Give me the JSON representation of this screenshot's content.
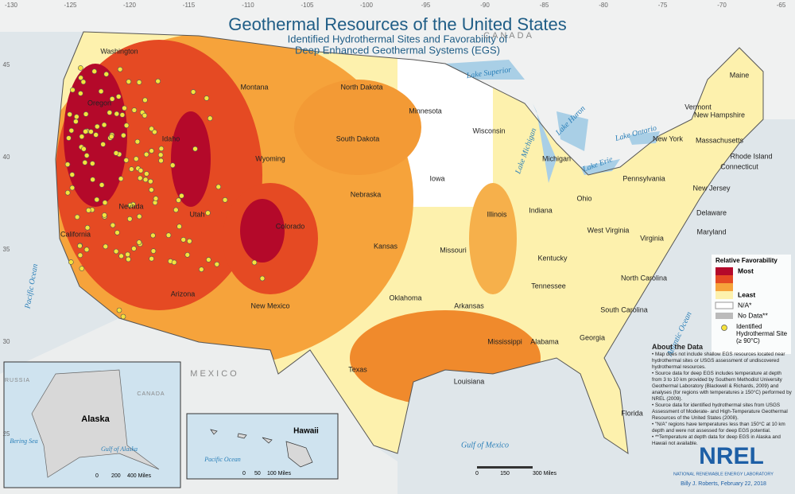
{
  "header": {
    "title": "Geothermal Resources of the United States",
    "subtitle": [
      "Identified Hydrothermal Sites and Favorability of",
      "Deep Enhanced Geothermal Systems (EGS)"
    ]
  },
  "map": {
    "states": [
      "Washington",
      "Oregon",
      "California",
      "Nevada",
      "Idaho",
      "Montana",
      "Wyoming",
      "Utah",
      "Arizona",
      "Colorado",
      "New Mexico",
      "North Dakota",
      "South Dakota",
      "Nebraska",
      "Kansas",
      "Oklahoma",
      "Texas",
      "Minnesota",
      "Iowa",
      "Missouri",
      "Arkansas",
      "Louisiana",
      "Wisconsin",
      "Illinois",
      "Michigan",
      "Indiana",
      "Ohio",
      "Kentucky",
      "Tennessee",
      "Mississippi",
      "Alabama",
      "Georgia",
      "Florida",
      "South Carolina",
      "North Carolina",
      "Virginia",
      "West Virginia",
      "Pennsylvania",
      "New York",
      "Maine",
      "Vermont",
      "New Hampshire",
      "Massachusetts",
      "Rhode Island",
      "Connecticut",
      "New Jersey",
      "Delaware",
      "Maryland"
    ],
    "water": [
      "Lake Superior",
      "Lake Michigan",
      "Lake Huron",
      "Lake Erie",
      "Lake Ontario",
      "Pacific Ocean",
      "Atlantic Ocean",
      "Gulf of Mexico"
    ],
    "countries": [
      "CANADA",
      "MEXICO"
    ],
    "longitudes": [
      -130,
      -125,
      -120,
      -115,
      -110,
      -105,
      -100,
      -95,
      -90,
      -85,
      -80,
      -75,
      -70,
      -65
    ],
    "latitudes": [
      45,
      40,
      35,
      30,
      25
    ]
  },
  "legend": {
    "title": "Relative Favorability",
    "most": "Most",
    "least": "Least",
    "na": "N/A*",
    "nodata": "No Data**",
    "site": "Identified Hydrothermal Site (≥ 90°C)"
  },
  "about": {
    "heading": "About the Data",
    "notes": [
      "• Map does not include shallow EGS resources located near hydrothermal sites or USGS assessment of undiscovered hydrothermal resources.",
      "• Source data for deep EGS includes temperature at depth from 3 to 10 km provided by Southern Methodist University Geothermal Laboratory (Blackwell & Richards, 2009) and analyses (for regions with temperatures ≥ 150°C) performed by NREL (2009).",
      "• Source data for identified hydrothermal sites from USGS Assessment of Moderate- and High-Temperature Geothermal Resources of the United States (2008).",
      "• \"N/A\" regions have temperatures less than 150°C at 10 km depth and were not assessed for deep EGS potential.",
      "• **Temperature at depth data for deep EGS in Alaska and Hawaii not available."
    ]
  },
  "insets": {
    "alaska": {
      "label": "Alaska",
      "places": [
        "RUSSIA",
        "CANADA",
        "Bering Sea",
        "Gulf of Alaska"
      ],
      "scale": [
        "0",
        "200",
        "400 Miles"
      ]
    },
    "hawaii": {
      "label": "Hawaii",
      "places": [
        "Pacific Ocean"
      ],
      "scale": [
        "0",
        "50",
        "100 Miles"
      ]
    }
  },
  "scale": [
    "0",
    "150",
    "300 Miles"
  ],
  "footer": {
    "logo": "NREL",
    "org": "NATIONAL RENEWABLE ENERGY LABORATORY",
    "credit": "Billy J. Roberts, February 22, 2018"
  }
}
